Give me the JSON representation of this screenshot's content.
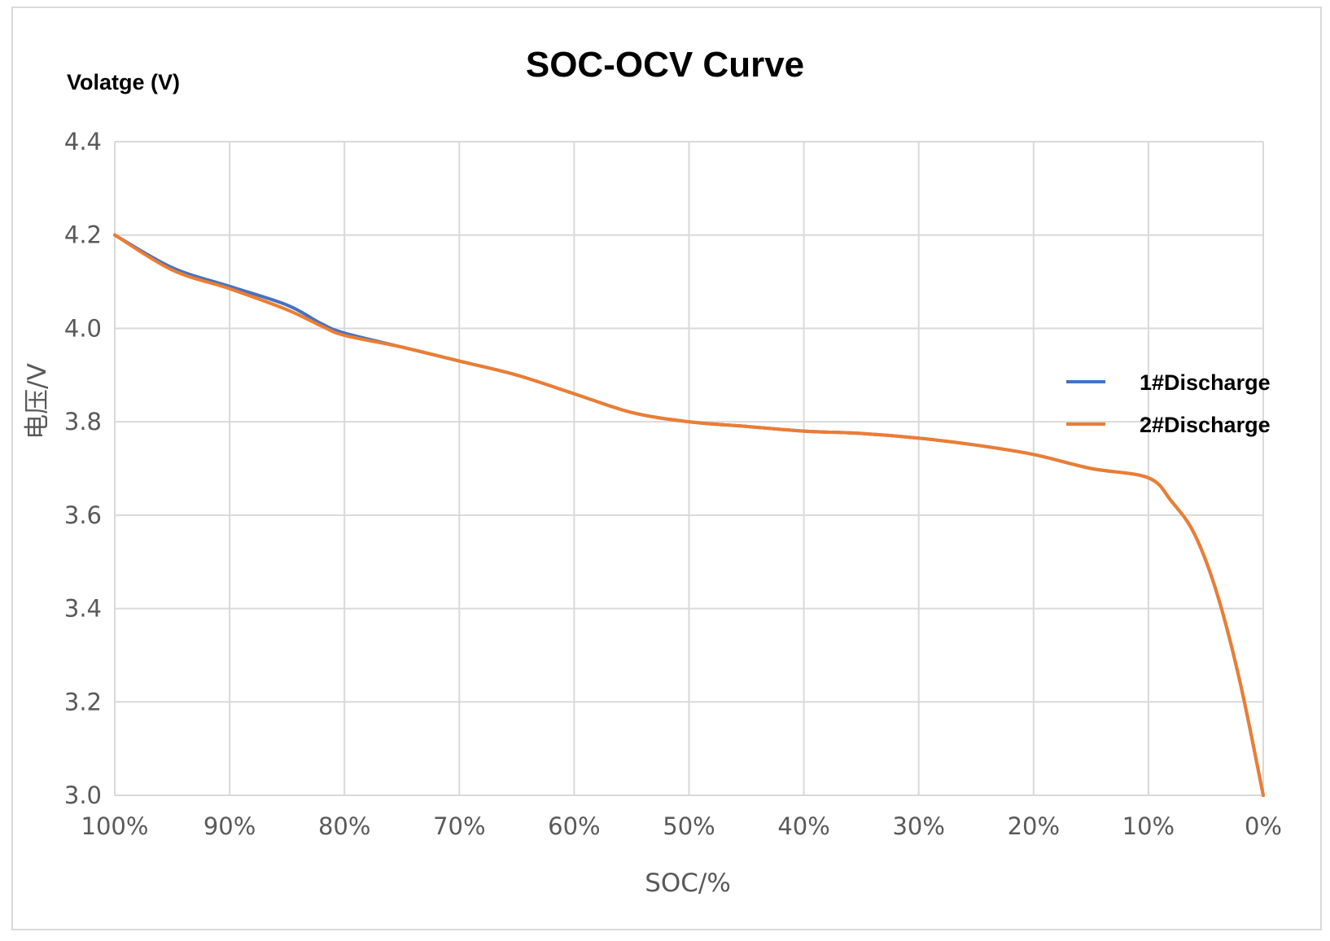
{
  "chart_data": {
    "type": "line",
    "title": "SOC-OCV Curve",
    "y_unit_label": "Volatge (V)",
    "xlabel": "SOC/%",
    "ylabel": "电压/V",
    "x_reversed": true,
    "xlim": [
      100,
      0
    ],
    "ylim": [
      3.0,
      4.4
    ],
    "x_ticks": [
      "100%",
      "90%",
      "80%",
      "70%",
      "60%",
      "50%",
      "40%",
      "30%",
      "20%",
      "10%",
      "0%"
    ],
    "y_ticks": [
      "3.0",
      "3.2",
      "3.4",
      "3.6",
      "3.8",
      "4.0",
      "4.2",
      "4.4"
    ],
    "grid": true,
    "legend_position": "right",
    "x": [
      100,
      95,
      90,
      85,
      82,
      80,
      75,
      70,
      65,
      60,
      55,
      50,
      45,
      40,
      35,
      30,
      25,
      20,
      15,
      10,
      8,
      6,
      4,
      2,
      0
    ],
    "series": [
      {
        "name": "1#Discharge",
        "color": "#4472c4",
        "values": [
          4.2,
          4.13,
          4.09,
          4.05,
          4.01,
          3.99,
          3.96,
          3.93,
          3.9,
          3.86,
          3.82,
          3.8,
          3.79,
          3.78,
          3.775,
          3.765,
          3.75,
          3.73,
          3.7,
          3.68,
          3.63,
          3.56,
          3.43,
          3.24,
          3.0
        ]
      },
      {
        "name": "2#Discharge",
        "color": "#ed7d31",
        "values": [
          4.2,
          4.125,
          4.085,
          4.04,
          4.005,
          3.985,
          3.96,
          3.93,
          3.9,
          3.86,
          3.82,
          3.8,
          3.79,
          3.78,
          3.775,
          3.765,
          3.75,
          3.73,
          3.7,
          3.68,
          3.63,
          3.56,
          3.43,
          3.24,
          3.0
        ]
      }
    ]
  }
}
